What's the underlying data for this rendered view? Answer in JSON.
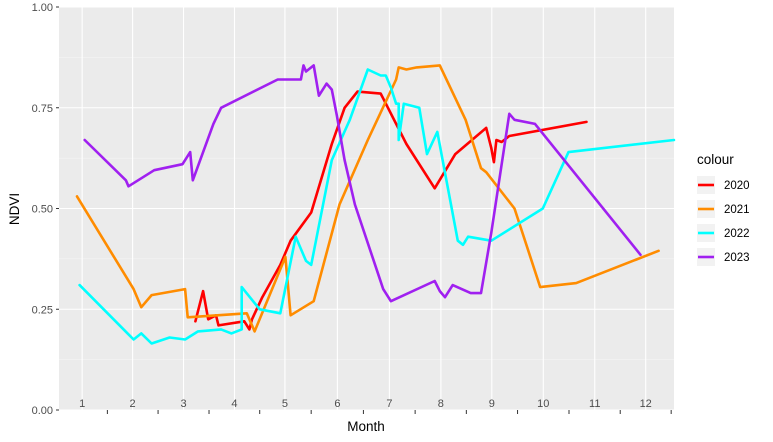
{
  "chart_data": {
    "type": "line",
    "xlabel": "Month",
    "ylabel": "NDVI",
    "ylim": [
      0,
      1
    ],
    "xlim": [
      0.55,
      12.5
    ],
    "y_ticks": [
      0,
      0.25,
      0.5,
      0.75,
      1
    ],
    "y_tick_labels": [
      "0.00",
      "0.25",
      "0.50",
      "0.75",
      "1.00"
    ],
    "month_labels": [
      {
        "x": 1.0,
        "text": "1"
      },
      {
        "x": 1.98,
        "text": "2"
      },
      {
        "x": 2.97,
        "text": "3"
      },
      {
        "x": 3.96,
        "text": "4"
      },
      {
        "x": 4.94,
        "text": "5"
      },
      {
        "x": 5.96,
        "text": "6"
      },
      {
        "x": 6.97,
        "text": "7"
      },
      {
        "x": 7.97,
        "text": "8"
      },
      {
        "x": 8.96,
        "text": "9"
      },
      {
        "x": 9.96,
        "text": "10"
      },
      {
        "x": 10.96,
        "text": "11"
      },
      {
        "x": 11.95,
        "text": "12"
      }
    ],
    "grid": true,
    "background": "#ebebeb",
    "legend_title": "colour",
    "legend_position": "right",
    "series": [
      {
        "name": "2020",
        "color": "#ff0000",
        "points": [
          [
            3.2,
            0.22
          ],
          [
            3.35,
            0.295
          ],
          [
            3.45,
            0.225
          ],
          [
            3.6,
            0.235
          ],
          [
            3.65,
            0.21
          ],
          [
            4.15,
            0.22
          ],
          [
            4.25,
            0.2
          ],
          [
            4.3,
            0.225
          ],
          [
            4.5,
            0.28
          ],
          [
            4.85,
            0.36
          ],
          [
            5.05,
            0.42
          ],
          [
            5.45,
            0.49
          ],
          [
            5.85,
            0.66
          ],
          [
            6.1,
            0.75
          ],
          [
            6.35,
            0.79
          ],
          [
            6.8,
            0.785
          ],
          [
            7.3,
            0.66
          ],
          [
            7.85,
            0.55
          ],
          [
            8.25,
            0.635
          ],
          [
            8.85,
            0.7
          ],
          [
            8.95,
            0.65
          ],
          [
            9.0,
            0.615
          ],
          [
            9.05,
            0.67
          ],
          [
            9.15,
            0.665
          ],
          [
            9.3,
            0.68
          ],
          [
            10.8,
            0.715
          ]
        ]
      },
      {
        "name": "2021",
        "color": "#ff8c00",
        "points": [
          [
            0.9,
            0.53
          ],
          [
            2.0,
            0.3
          ],
          [
            2.15,
            0.255
          ],
          [
            2.35,
            0.285
          ],
          [
            3.0,
            0.3
          ],
          [
            3.05,
            0.23
          ],
          [
            4.2,
            0.24
          ],
          [
            4.35,
            0.195
          ],
          [
            4.95,
            0.38
          ],
          [
            5.05,
            0.235
          ],
          [
            5.5,
            0.27
          ],
          [
            6.0,
            0.51
          ],
          [
            6.55,
            0.67
          ],
          [
            7.1,
            0.82
          ],
          [
            7.15,
            0.85
          ],
          [
            7.3,
            0.845
          ],
          [
            7.5,
            0.85
          ],
          [
            7.95,
            0.855
          ],
          [
            8.45,
            0.72
          ],
          [
            8.75,
            0.6
          ],
          [
            8.85,
            0.59
          ],
          [
            9.4,
            0.5
          ],
          [
            9.9,
            0.305
          ],
          [
            10.6,
            0.315
          ],
          [
            12.2,
            0.395
          ]
        ]
      },
      {
        "name": "2022",
        "color": "#00ffff",
        "points": [
          [
            0.95,
            0.31
          ],
          [
            2.0,
            0.175
          ],
          [
            2.15,
            0.19
          ],
          [
            2.35,
            0.165
          ],
          [
            2.7,
            0.18
          ],
          [
            3.0,
            0.175
          ],
          [
            3.25,
            0.195
          ],
          [
            3.7,
            0.2
          ],
          [
            3.9,
            0.19
          ],
          [
            4.1,
            0.2
          ],
          [
            4.1,
            0.305
          ],
          [
            4.45,
            0.25
          ],
          [
            4.85,
            0.24
          ],
          [
            5.15,
            0.43
          ],
          [
            5.35,
            0.37
          ],
          [
            5.45,
            0.36
          ],
          [
            5.85,
            0.62
          ],
          [
            6.2,
            0.72
          ],
          [
            6.55,
            0.845
          ],
          [
            6.8,
            0.83
          ],
          [
            6.9,
            0.83
          ],
          [
            7.0,
            0.8
          ],
          [
            7.1,
            0.76
          ],
          [
            7.15,
            0.76
          ],
          [
            7.15,
            0.67
          ],
          [
            7.25,
            0.76
          ],
          [
            7.55,
            0.75
          ],
          [
            7.7,
            0.635
          ],
          [
            7.9,
            0.69
          ],
          [
            8.3,
            0.42
          ],
          [
            8.4,
            0.41
          ],
          [
            8.5,
            0.43
          ],
          [
            8.95,
            0.42
          ],
          [
            9.95,
            0.5
          ],
          [
            10.45,
            0.64
          ],
          [
            12.5,
            0.67
          ]
        ]
      },
      {
        "name": "2023",
        "color": "#a020f0",
        "points": [
          [
            1.05,
            0.67
          ],
          [
            1.85,
            0.57
          ],
          [
            1.9,
            0.555
          ],
          [
            2.4,
            0.595
          ],
          [
            2.95,
            0.61
          ],
          [
            3.1,
            0.64
          ],
          [
            3.15,
            0.57
          ],
          [
            3.55,
            0.71
          ],
          [
            3.7,
            0.75
          ],
          [
            4.8,
            0.82
          ],
          [
            5.25,
            0.82
          ],
          [
            5.3,
            0.855
          ],
          [
            5.35,
            0.84
          ],
          [
            5.5,
            0.855
          ],
          [
            5.6,
            0.78
          ],
          [
            5.75,
            0.81
          ],
          [
            5.85,
            0.795
          ],
          [
            5.95,
            0.73
          ],
          [
            6.1,
            0.62
          ],
          [
            6.3,
            0.51
          ],
          [
            6.85,
            0.3
          ],
          [
            7.0,
            0.27
          ],
          [
            7.85,
            0.32
          ],
          [
            7.95,
            0.295
          ],
          [
            8.05,
            0.28
          ],
          [
            8.2,
            0.31
          ],
          [
            8.55,
            0.29
          ],
          [
            8.75,
            0.29
          ],
          [
            8.95,
            0.44
          ],
          [
            9.3,
            0.735
          ],
          [
            9.4,
            0.72
          ],
          [
            9.8,
            0.71
          ],
          [
            11.85,
            0.385
          ]
        ]
      }
    ]
  }
}
